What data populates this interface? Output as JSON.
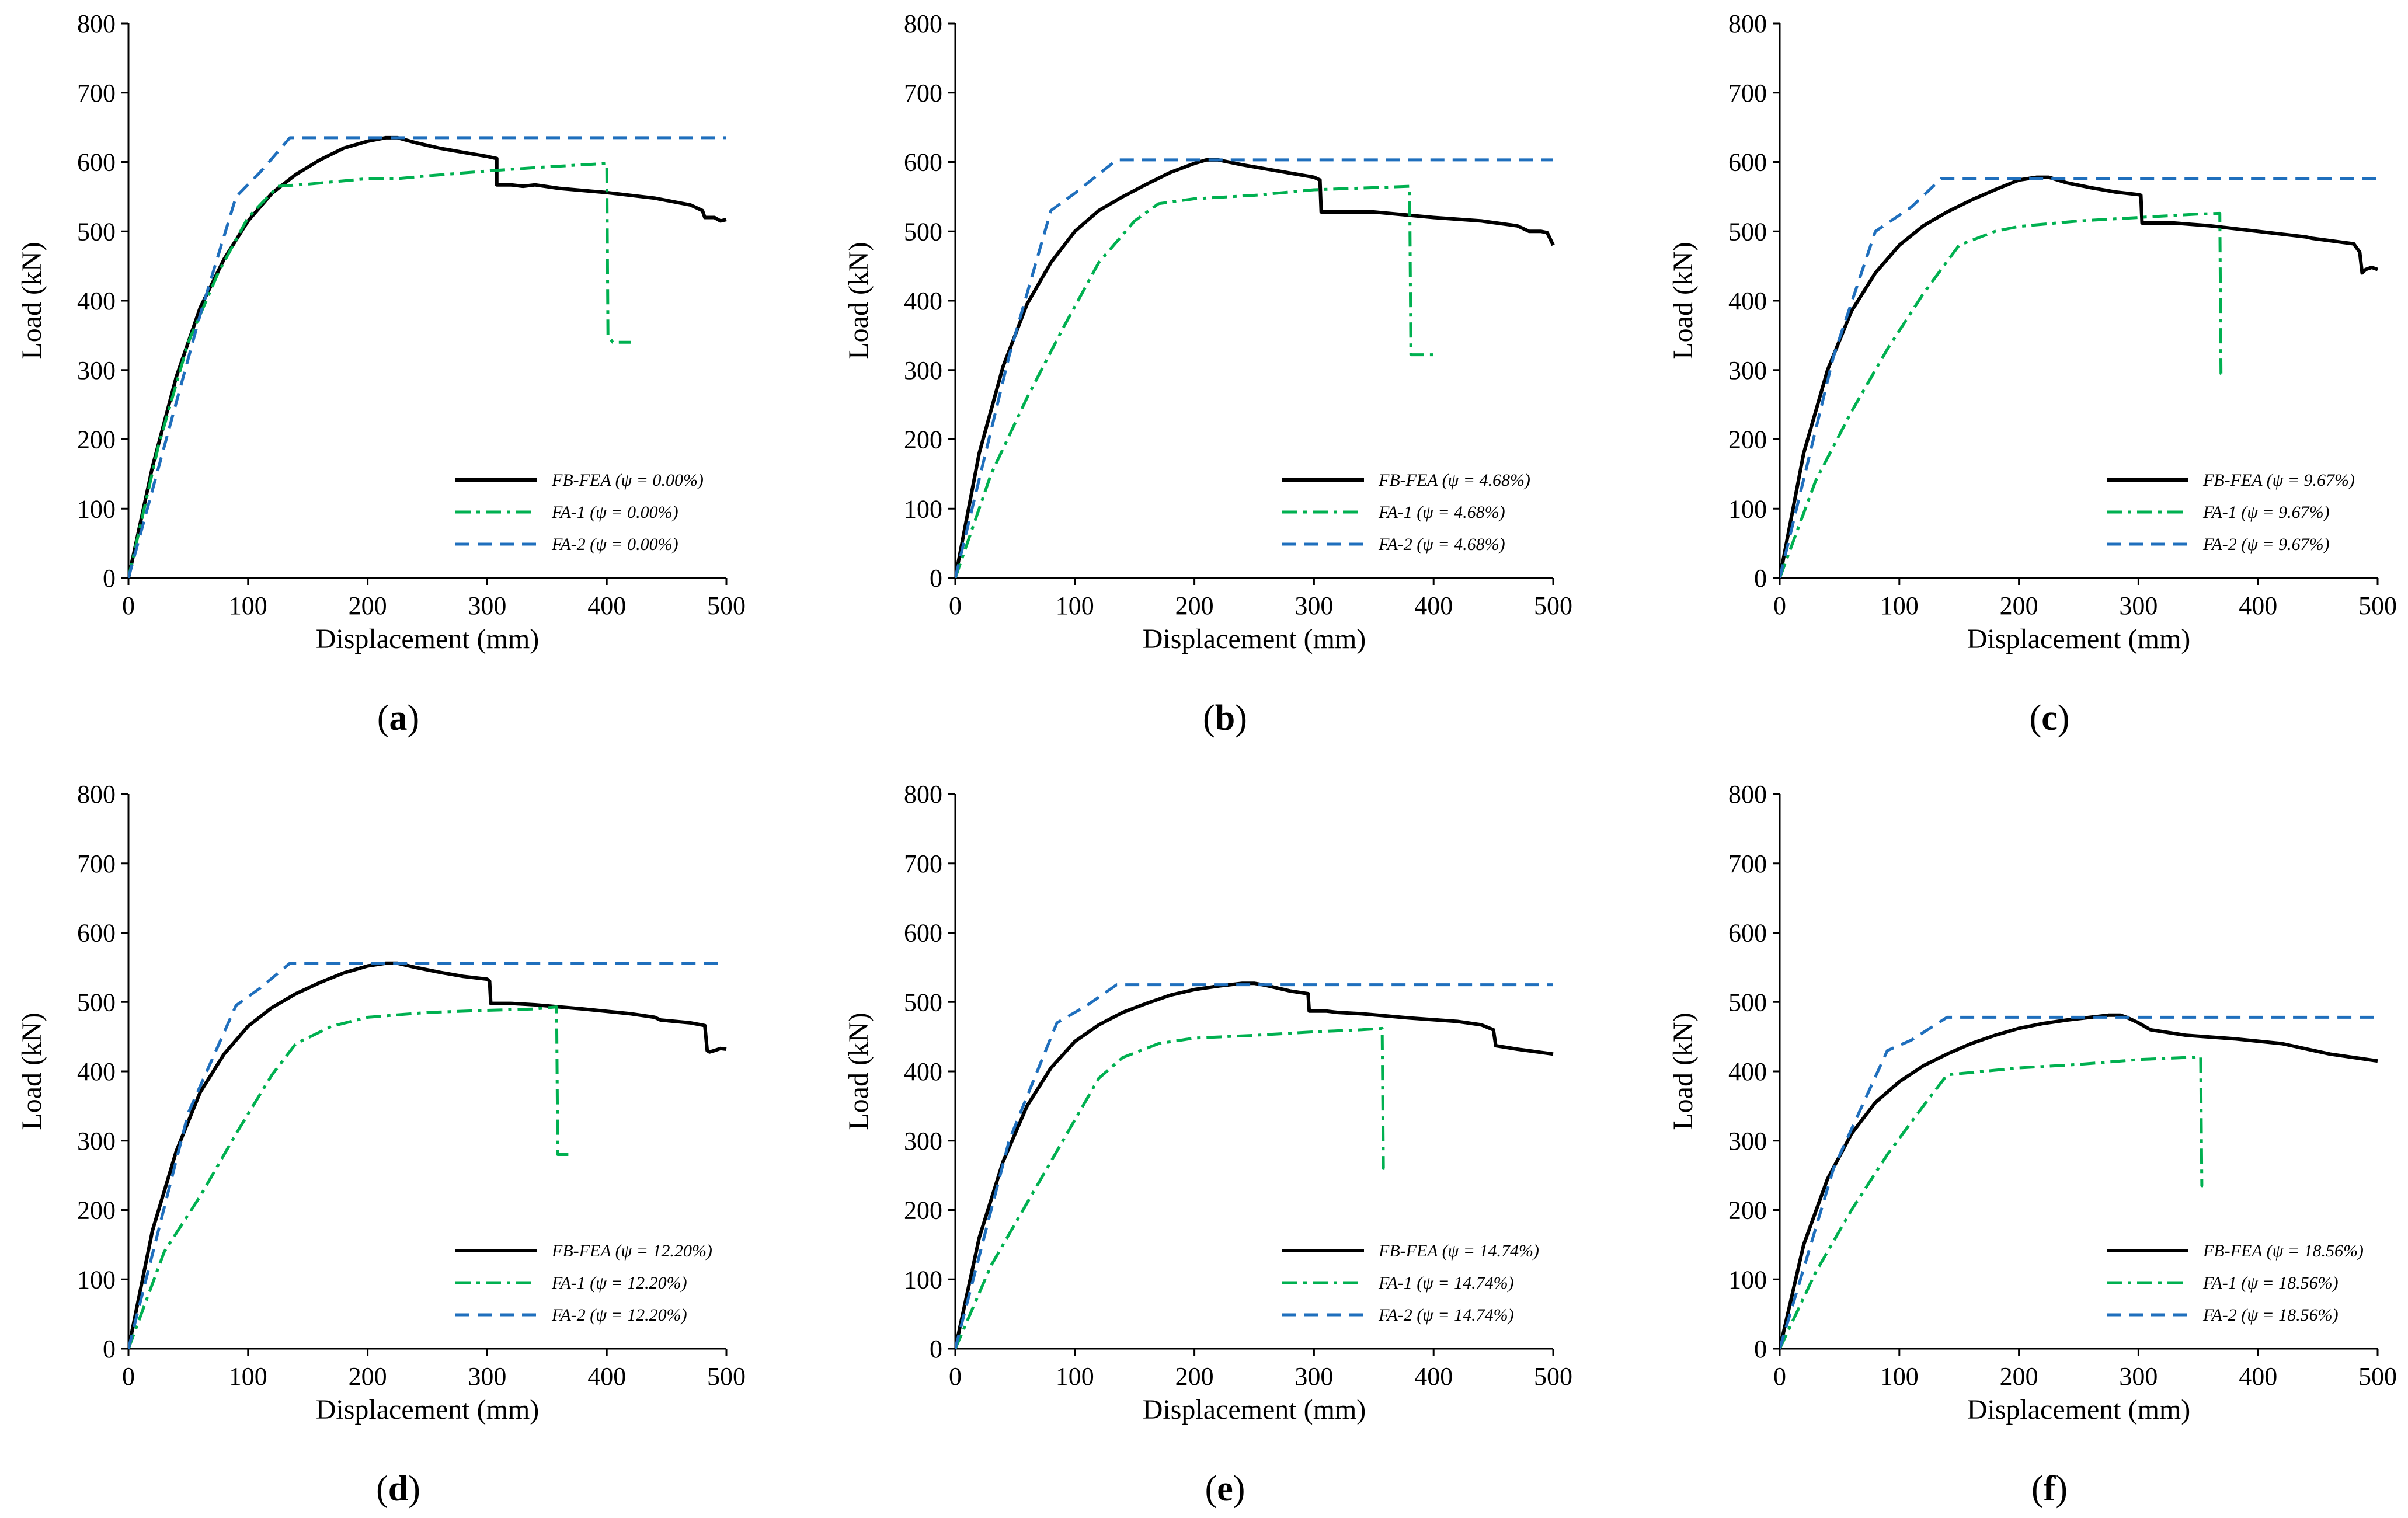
{
  "series_styles": [
    {
      "key": "fbfea",
      "name_prefix": "FB-FEA",
      "color": "#000000",
      "dash": "none",
      "width": 6
    },
    {
      "key": "fa1",
      "name_prefix": "FA-1",
      "color": "#00b050",
      "dash": "26,10,6,10",
      "width": 5
    },
    {
      "key": "fa2",
      "name_prefix": "FA-2",
      "color": "#1f6fbd",
      "dash": "24,14",
      "width": 5
    }
  ],
  "chart_data": [
    {
      "type": "line",
      "panel": "a",
      "xlabel": "Displacement (mm)",
      "ylabel": "Load (kN)",
      "xlim": [
        0,
        500
      ],
      "ylim": [
        0,
        800
      ],
      "xticks": [
        0,
        100,
        200,
        300,
        400,
        500
      ],
      "yticks": [
        0,
        100,
        200,
        300,
        400,
        500,
        600,
        700,
        800
      ],
      "legend_position": "bottom-right",
      "series": [
        {
          "name": "FB-FEA (ψ = 0.00%)",
          "style": "fbfea",
          "x": [
            0,
            20,
            40,
            60,
            80,
            100,
            120,
            140,
            160,
            180,
            200,
            215,
            225,
            240,
            260,
            280,
            300,
            308,
            308,
            320,
            330,
            340,
            360,
            400,
            440,
            470,
            480,
            482,
            490,
            495,
            500
          ],
          "y": [
            0,
            160,
            290,
            390,
            460,
            515,
            555,
            582,
            603,
            620,
            630,
            635,
            635,
            628,
            620,
            614,
            608,
            605,
            567,
            567,
            565,
            567,
            562,
            556,
            548,
            538,
            530,
            520,
            520,
            515,
            517
          ]
        },
        {
          "name": "FA-1 (ψ = 0.00%)",
          "style": "fa1",
          "x": [
            0,
            25,
            50,
            75,
            100,
            125,
            150,
            200,
            225,
            250,
            300,
            350,
            390,
            400,
            401,
            405,
            410,
            420
          ],
          "y": [
            0,
            190,
            340,
            440,
            520,
            565,
            568,
            576,
            576,
            580,
            587,
            593,
            597,
            598,
            350,
            340,
            340,
            340
          ]
        },
        {
          "name": "FA-2 (ψ = 0.00%)",
          "style": "fa2",
          "x": [
            0,
            60,
            90,
            110,
            135,
            140,
            500
          ],
          "y": [
            0,
            380,
            550,
            585,
            635,
            635,
            635
          ]
        }
      ]
    },
    {
      "type": "line",
      "panel": "b",
      "xlabel": "Displacement (mm)",
      "ylabel": "Load (kN)",
      "xlim": [
        0,
        500
      ],
      "ylim": [
        0,
        800
      ],
      "xticks": [
        0,
        100,
        200,
        300,
        400,
        500
      ],
      "yticks": [
        0,
        100,
        200,
        300,
        400,
        500,
        600,
        700,
        800
      ],
      "legend_position": "bottom-right",
      "series": [
        {
          "name": "FB-FEA (ψ = 4.68%)",
          "style": "fbfea",
          "x": [
            0,
            20,
            40,
            60,
            80,
            100,
            120,
            140,
            160,
            180,
            200,
            210,
            220,
            240,
            260,
            280,
            300,
            305,
            306,
            330,
            350,
            400,
            440,
            470,
            480,
            490,
            495,
            500
          ],
          "y": [
            0,
            180,
            305,
            395,
            455,
            500,
            530,
            550,
            568,
            585,
            598,
            603,
            603,
            596,
            590,
            584,
            578,
            574,
            528,
            528,
            528,
            520,
            515,
            508,
            500,
            500,
            498,
            480
          ]
        },
        {
          "name": "FA-1 (ψ = 4.68%)",
          "style": "fa1",
          "x": [
            0,
            30,
            60,
            90,
            120,
            150,
            170,
            200,
            250,
            300,
            350,
            380,
            381,
            385,
            400
          ],
          "y": [
            0,
            150,
            260,
            360,
            455,
            515,
            540,
            547,
            552,
            560,
            563,
            565,
            322,
            322,
            322
          ]
        },
        {
          "name": "FA-2 (ψ = 4.68%)",
          "style": "fa2",
          "x": [
            0,
            45,
            80,
            100,
            135,
            140,
            500
          ],
          "y": [
            0,
            320,
            530,
            555,
            603,
            603,
            603
          ]
        }
      ]
    },
    {
      "type": "line",
      "panel": "c",
      "xlabel": "Displacement (mm)",
      "ylabel": "Load (kN)",
      "xlim": [
        0,
        500
      ],
      "ylim": [
        0,
        800
      ],
      "xticks": [
        0,
        100,
        200,
        300,
        400,
        500
      ],
      "yticks": [
        0,
        100,
        200,
        300,
        400,
        500,
        600,
        700,
        800
      ],
      "legend_position": "bottom-right",
      "series": [
        {
          "name": "FB-FEA (ψ = 9.67%)",
          "style": "fbfea",
          "x": [
            0,
            20,
            40,
            60,
            80,
            100,
            120,
            140,
            160,
            180,
            200,
            215,
            225,
            240,
            260,
            280,
            300,
            302,
            303,
            330,
            360,
            400,
            440,
            445,
            480,
            485,
            487,
            490,
            495,
            500
          ],
          "y": [
            0,
            180,
            300,
            385,
            440,
            480,
            508,
            528,
            545,
            560,
            574,
            578,
            578,
            570,
            563,
            557,
            553,
            552,
            512,
            512,
            508,
            500,
            492,
            490,
            482,
            470,
            440,
            445,
            448,
            445
          ]
        },
        {
          "name": "FA-1 (ψ = 9.67%)",
          "style": "fa1",
          "x": [
            0,
            30,
            60,
            90,
            120,
            150,
            180,
            200,
            250,
            300,
            350,
            368,
            369,
            371
          ],
          "y": [
            0,
            140,
            240,
            330,
            410,
            480,
            500,
            507,
            515,
            520,
            525,
            526,
            295,
            295
          ]
        },
        {
          "name": "FA-2 (ψ = 9.67%)",
          "style": "fa2",
          "x": [
            0,
            45,
            80,
            110,
            135,
            140,
            500
          ],
          "y": [
            0,
            320,
            500,
            535,
            576,
            576,
            576
          ]
        }
      ]
    },
    {
      "type": "line",
      "panel": "d",
      "xlabel": "Displacement (mm)",
      "ylabel": "Load (kN)",
      "xlim": [
        0,
        500
      ],
      "ylim": [
        0,
        800
      ],
      "xticks": [
        0,
        100,
        200,
        300,
        400,
        500
      ],
      "yticks": [
        0,
        100,
        200,
        300,
        400,
        500,
        600,
        700,
        800
      ],
      "legend_position": "bottom-right",
      "series": [
        {
          "name": "FB-FEA (ψ = 12.20%)",
          "style": "fbfea",
          "x": [
            0,
            20,
            40,
            60,
            80,
            100,
            120,
            140,
            160,
            180,
            200,
            215,
            225,
            240,
            260,
            280,
            300,
            302,
            303,
            320,
            340,
            380,
            420,
            440,
            445,
            470,
            482,
            484,
            486,
            490,
            495,
            500
          ],
          "y": [
            0,
            170,
            285,
            370,
            425,
            465,
            492,
            512,
            528,
            542,
            552,
            556,
            556,
            550,
            543,
            537,
            533,
            530,
            498,
            498,
            496,
            490,
            483,
            478,
            474,
            470,
            466,
            430,
            428,
            430,
            433,
            432
          ]
        },
        {
          "name": "FA-1 (ψ = 12.20%)",
          "style": "fa1",
          "x": [
            0,
            30,
            60,
            90,
            120,
            140,
            170,
            200,
            250,
            300,
            340,
            358,
            359,
            363,
            370
          ],
          "y": [
            0,
            140,
            220,
            310,
            395,
            440,
            465,
            478,
            485,
            488,
            490,
            493,
            280,
            280,
            280
          ]
        },
        {
          "name": "FA-2 (ψ = 12.20%)",
          "style": "fa2",
          "x": [
            0,
            50,
            90,
            110,
            135,
            140,
            500
          ],
          "y": [
            0,
            340,
            495,
            520,
            556,
            556,
            556
          ]
        }
      ]
    },
    {
      "type": "line",
      "panel": "e",
      "xlabel": "Displacement (mm)",
      "ylabel": "Load (kN)",
      "xlim": [
        0,
        500
      ],
      "ylim": [
        0,
        800
      ],
      "xticks": [
        0,
        100,
        200,
        300,
        400,
        500
      ],
      "yticks": [
        0,
        100,
        200,
        300,
        400,
        500,
        600,
        700,
        800
      ],
      "legend_position": "bottom-right",
      "series": [
        {
          "name": "FB-FEA (ψ = 14.74%)",
          "style": "fbfea",
          "x": [
            0,
            20,
            40,
            60,
            80,
            100,
            120,
            140,
            160,
            180,
            200,
            220,
            240,
            250,
            260,
            280,
            295,
            296,
            310,
            320,
            340,
            380,
            420,
            440,
            450,
            452,
            470,
            500
          ],
          "y": [
            0,
            160,
            270,
            350,
            405,
            443,
            467,
            485,
            498,
            510,
            518,
            523,
            527,
            527,
            524,
            516,
            512,
            487,
            487,
            485,
            483,
            477,
            472,
            467,
            460,
            437,
            432,
            425
          ]
        },
        {
          "name": "FA-1 (ψ = 14.74%)",
          "style": "fa1",
          "x": [
            0,
            30,
            60,
            90,
            120,
            140,
            170,
            200,
            250,
            300,
            340,
            357,
            358,
            359
          ],
          "y": [
            0,
            120,
            210,
            300,
            390,
            420,
            440,
            448,
            452,
            457,
            460,
            462,
            260,
            260
          ]
        },
        {
          "name": "FA-2 (ψ = 14.74%)",
          "style": "fa2",
          "x": [
            0,
            45,
            85,
            110,
            135,
            140,
            500
          ],
          "y": [
            0,
            300,
            470,
            495,
            525,
            525,
            525
          ]
        }
      ]
    },
    {
      "type": "line",
      "panel": "f",
      "xlabel": "Displacement (mm)",
      "ylabel": "Load (kN)",
      "xlim": [
        0,
        500
      ],
      "ylim": [
        0,
        800
      ],
      "xticks": [
        0,
        100,
        200,
        300,
        400,
        500
      ],
      "yticks": [
        0,
        100,
        200,
        300,
        400,
        500,
        600,
        700,
        800
      ],
      "legend_position": "bottom-right",
      "series": [
        {
          "name": "FB-FEA (ψ = 18.56%)",
          "style": "fbfea",
          "x": [
            0,
            20,
            40,
            60,
            80,
            100,
            120,
            140,
            160,
            180,
            200,
            220,
            240,
            260,
            275,
            285,
            290,
            300,
            310,
            340,
            380,
            420,
            460,
            500
          ],
          "y": [
            0,
            150,
            245,
            310,
            355,
            385,
            408,
            425,
            440,
            452,
            462,
            469,
            474,
            478,
            481,
            481,
            478,
            470,
            460,
            452,
            447,
            440,
            425,
            415
          ]
        },
        {
          "name": "FA-1 (ψ = 18.56%)",
          "style": "fa1",
          "x": [
            0,
            30,
            60,
            90,
            120,
            140,
            170,
            200,
            250,
            300,
            340,
            352,
            353,
            354
          ],
          "y": [
            0,
            110,
            200,
            280,
            350,
            395,
            400,
            405,
            410,
            417,
            420,
            421,
            235,
            235
          ]
        },
        {
          "name": "FA-2 (ψ = 18.56%)",
          "style": "fa2",
          "x": [
            0,
            45,
            90,
            110,
            140,
            150,
            500
          ],
          "y": [
            0,
            260,
            430,
            445,
            478,
            478,
            478
          ]
        }
      ]
    }
  ]
}
